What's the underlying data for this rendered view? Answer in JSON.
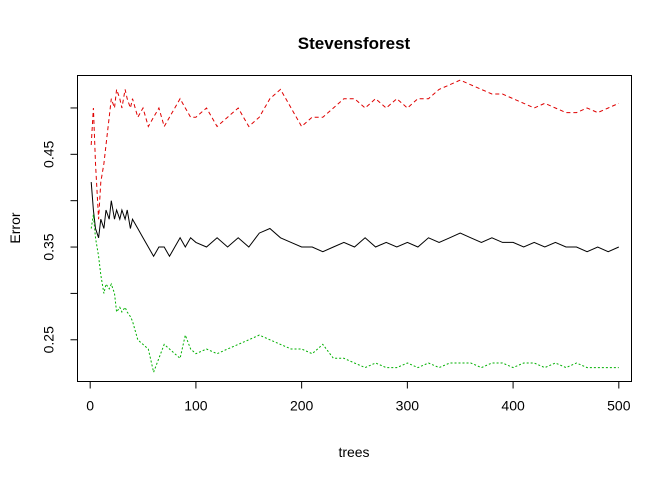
{
  "chart_data": {
    "type": "line",
    "title": "Stevensforest",
    "xlabel": "trees",
    "ylabel": "Error",
    "xlim": [
      -12,
      512
    ],
    "ylim": [
      0.205,
      0.535
    ],
    "xticks": [
      0,
      100,
      200,
      300,
      400,
      500
    ],
    "yticks": [
      0.25,
      0.3,
      0.35,
      0.4,
      0.45,
      0.5
    ],
    "ytick_labels": [
      "0.25",
      "",
      "0.35",
      "",
      "0.45",
      ""
    ],
    "grid": false,
    "legend": "none",
    "series": [
      {
        "color": "#000000",
        "dash": "none",
        "x": [
          1,
          3,
          5,
          8,
          10,
          13,
          15,
          18,
          20,
          23,
          25,
          28,
          30,
          33,
          35,
          38,
          40,
          45,
          50,
          55,
          60,
          65,
          70,
          75,
          80,
          85,
          90,
          95,
          100,
          110,
          120,
          130,
          140,
          150,
          160,
          170,
          180,
          190,
          200,
          210,
          220,
          230,
          240,
          250,
          260,
          270,
          280,
          290,
          300,
          310,
          320,
          330,
          340,
          350,
          360,
          370,
          380,
          390,
          400,
          410,
          420,
          430,
          440,
          450,
          460,
          470,
          480,
          490,
          500
        ],
        "y": [
          0.42,
          0.39,
          0.37,
          0.36,
          0.38,
          0.37,
          0.39,
          0.38,
          0.4,
          0.38,
          0.39,
          0.38,
          0.39,
          0.38,
          0.39,
          0.37,
          0.38,
          0.37,
          0.36,
          0.35,
          0.34,
          0.35,
          0.35,
          0.34,
          0.35,
          0.36,
          0.35,
          0.36,
          0.355,
          0.35,
          0.36,
          0.35,
          0.36,
          0.35,
          0.365,
          0.37,
          0.36,
          0.355,
          0.35,
          0.35,
          0.345,
          0.35,
          0.355,
          0.35,
          0.36,
          0.35,
          0.355,
          0.35,
          0.355,
          0.35,
          0.36,
          0.355,
          0.36,
          0.365,
          0.36,
          0.355,
          0.36,
          0.355,
          0.355,
          0.35,
          0.355,
          0.35,
          0.355,
          0.35,
          0.35,
          0.345,
          0.35,
          0.345,
          0.35
        ]
      },
      {
        "color": "#DF0000",
        "dash": "4,3",
        "x": [
          1,
          3,
          5,
          8,
          10,
          13,
          15,
          18,
          20,
          23,
          25,
          28,
          30,
          33,
          35,
          38,
          40,
          45,
          50,
          55,
          60,
          65,
          70,
          75,
          80,
          85,
          90,
          95,
          100,
          110,
          120,
          130,
          140,
          150,
          160,
          170,
          180,
          190,
          200,
          210,
          220,
          230,
          240,
          250,
          260,
          270,
          280,
          290,
          300,
          310,
          320,
          330,
          340,
          350,
          360,
          370,
          380,
          390,
          400,
          410,
          420,
          430,
          440,
          450,
          460,
          470,
          480,
          490,
          500
        ],
        "y": [
          0.46,
          0.5,
          0.44,
          0.38,
          0.42,
          0.44,
          0.46,
          0.49,
          0.51,
          0.5,
          0.52,
          0.51,
          0.5,
          0.52,
          0.51,
          0.5,
          0.51,
          0.49,
          0.5,
          0.48,
          0.49,
          0.5,
          0.48,
          0.49,
          0.5,
          0.51,
          0.5,
          0.49,
          0.49,
          0.5,
          0.48,
          0.49,
          0.5,
          0.48,
          0.49,
          0.51,
          0.52,
          0.5,
          0.48,
          0.49,
          0.49,
          0.5,
          0.51,
          0.51,
          0.5,
          0.51,
          0.5,
          0.51,
          0.5,
          0.51,
          0.51,
          0.52,
          0.525,
          0.53,
          0.525,
          0.52,
          0.515,
          0.515,
          0.51,
          0.505,
          0.5,
          0.505,
          0.5,
          0.495,
          0.495,
          0.5,
          0.495,
          0.5,
          0.505
        ]
      },
      {
        "color": "#00B000",
        "dash": "2,2",
        "x": [
          1,
          3,
          5,
          8,
          10,
          13,
          15,
          18,
          20,
          23,
          25,
          28,
          30,
          33,
          35,
          38,
          40,
          45,
          50,
          55,
          60,
          65,
          70,
          75,
          80,
          85,
          90,
          95,
          100,
          110,
          120,
          130,
          140,
          150,
          160,
          170,
          180,
          190,
          200,
          210,
          220,
          230,
          240,
          250,
          260,
          270,
          280,
          290,
          300,
          310,
          320,
          330,
          340,
          350,
          360,
          370,
          380,
          390,
          400,
          410,
          420,
          430,
          440,
          450,
          460,
          470,
          480,
          490,
          500
        ],
        "y": [
          0.37,
          0.385,
          0.36,
          0.34,
          0.32,
          0.3,
          0.31,
          0.305,
          0.31,
          0.3,
          0.28,
          0.285,
          0.28,
          0.285,
          0.28,
          0.275,
          0.27,
          0.25,
          0.245,
          0.24,
          0.215,
          0.23,
          0.245,
          0.24,
          0.235,
          0.23,
          0.255,
          0.24,
          0.235,
          0.24,
          0.235,
          0.24,
          0.245,
          0.25,
          0.255,
          0.25,
          0.245,
          0.24,
          0.24,
          0.235,
          0.245,
          0.23,
          0.23,
          0.225,
          0.22,
          0.225,
          0.22,
          0.22,
          0.225,
          0.22,
          0.225,
          0.22,
          0.225,
          0.225,
          0.225,
          0.22,
          0.225,
          0.225,
          0.22,
          0.225,
          0.225,
          0.22,
          0.225,
          0.22,
          0.225,
          0.22,
          0.22,
          0.22,
          0.22
        ]
      }
    ]
  }
}
